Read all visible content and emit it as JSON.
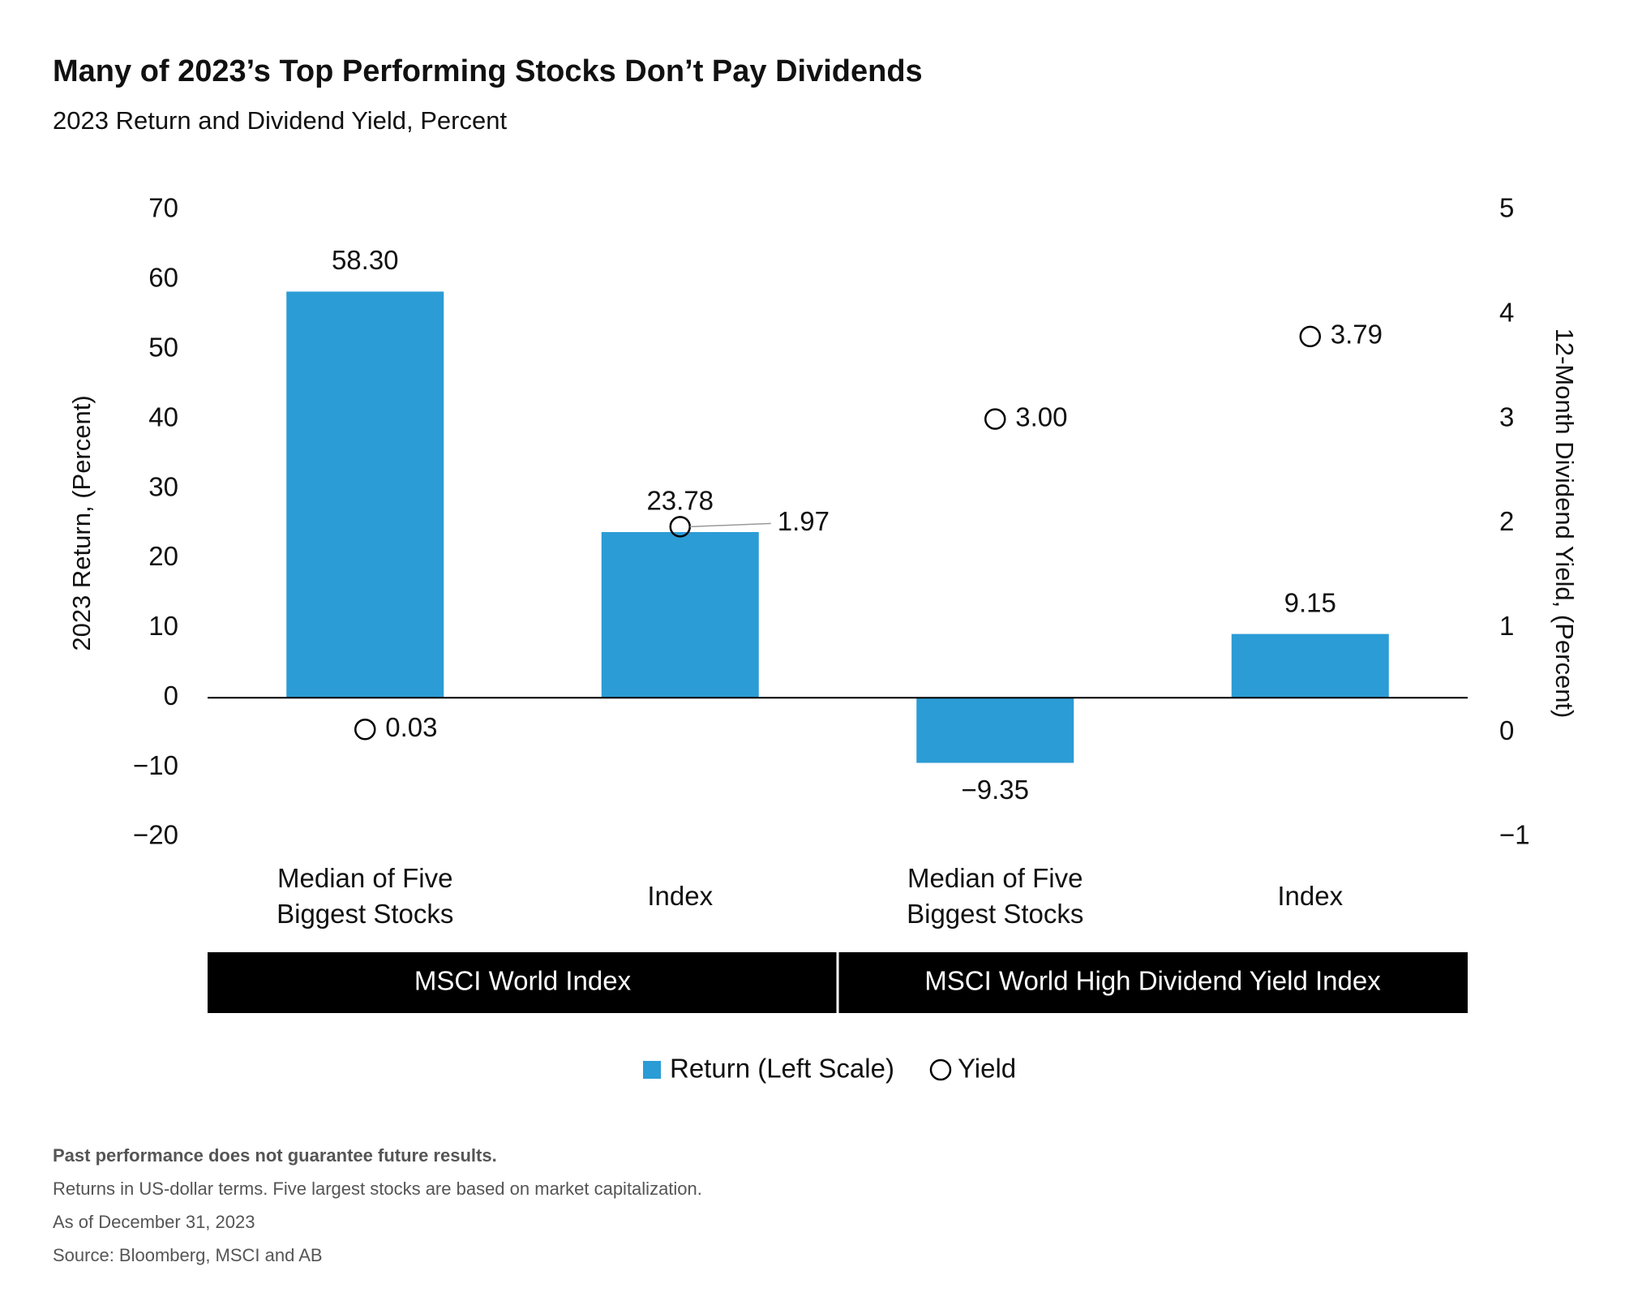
{
  "chart_data": {
    "type": "bar",
    "title": "Many of 2023’s Top Performing Stocks Don’t Pay Dividends",
    "subtitle": "2023 Return and Dividend Yield, Percent",
    "y_label": "2023 Return, (Percent)",
    "y2_label": "12-Month Dividend Yield, (Percent)",
    "categories": [
      "Median of Five Biggest Stocks",
      "Index",
      "Median of Five Biggest Stocks",
      "Index"
    ],
    "groups": [
      {
        "name": "MSCI World Index",
        "span": [
          0,
          1
        ]
      },
      {
        "name": "MSCI World High Dividend Yield Index",
        "span": [
          2,
          3
        ]
      }
    ],
    "series": [
      {
        "name": "Return (Left Scale)",
        "type": "bar",
        "color": "#2b9cd5",
        "values": [
          58.3,
          23.78,
          -9.35,
          9.15
        ],
        "value_labels": [
          "58.30",
          "23.78",
          "−9.35",
          "9.15"
        ]
      },
      {
        "name": "Yield",
        "type": "scatter",
        "axis": "y2",
        "color": "#000000",
        "values": [
          0.03,
          1.97,
          3.0,
          3.79
        ],
        "value_labels": [
          "0.03",
          "1.97",
          "3.00",
          "3.79"
        ]
      }
    ],
    "ylim": [
      -20,
      70
    ],
    "yticks": [
      {
        "value": -20,
        "label": "−20"
      },
      {
        "value": -10,
        "label": "−10"
      },
      0,
      10,
      20,
      30,
      40,
      50,
      60,
      70
    ],
    "y2lim": [
      -1,
      5
    ],
    "y2ticks": [
      {
        "value": -1,
        "label": "−1"
      },
      0,
      1,
      2,
      3,
      4,
      5
    ],
    "footnotes": [
      "Past performance does not guarantee future results.",
      "Returns in US-dollar terms. Five largest stocks are based on market capitalization.",
      "As of December 31, 2023",
      "Source: Bloomberg, MSCI and AB"
    ]
  }
}
